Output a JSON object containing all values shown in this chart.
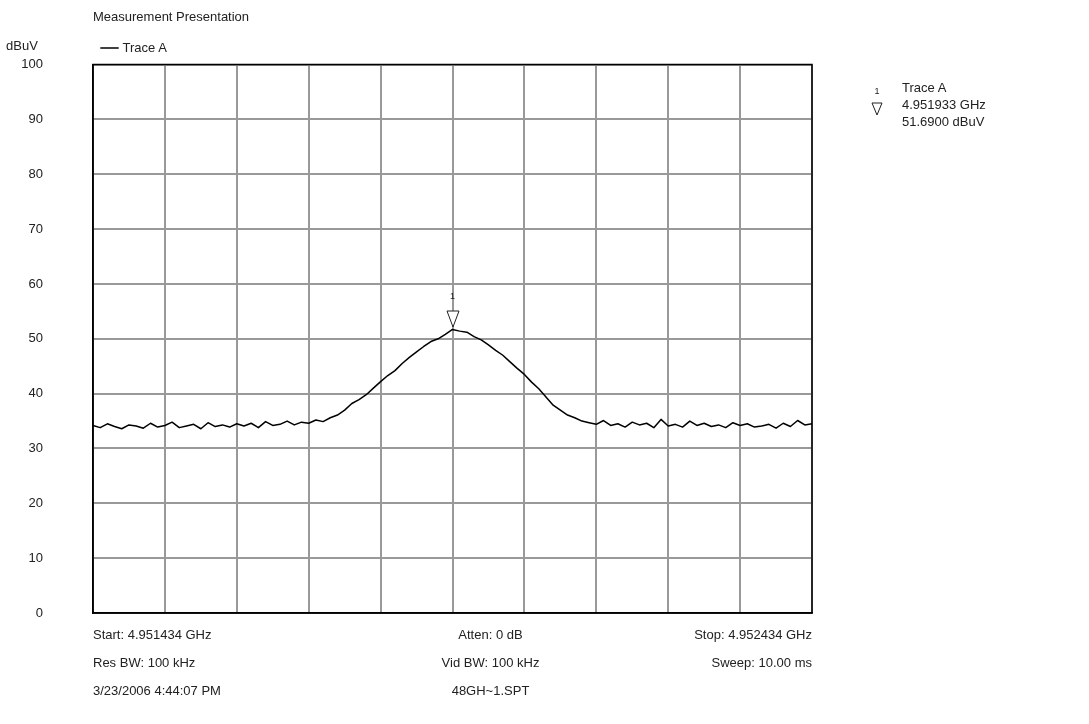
{
  "chart_data": {
    "type": "line",
    "title": "Measurement Presentation",
    "ylabel": "dBuV",
    "categories": [
      null,
      null,
      null,
      null,
      null,
      null,
      null,
      null,
      null,
      null,
      null,
      null,
      null,
      null,
      null,
      null,
      null,
      null,
      null,
      null,
      null,
      null,
      null,
      null,
      null,
      null,
      null,
      null,
      null,
      null,
      null,
      null,
      null,
      null,
      null,
      null,
      null,
      null,
      null,
      null,
      null,
      null,
      null,
      null,
      null,
      null,
      null,
      null,
      null,
      null,
      null,
      null,
      null,
      null,
      null,
      null,
      null,
      null,
      null,
      null,
      null,
      null,
      null,
      null,
      null,
      null,
      null,
      null,
      null,
      null,
      null,
      null,
      null,
      null,
      null,
      null,
      null,
      null,
      null,
      null,
      null,
      null,
      null,
      null,
      null,
      null,
      null,
      null,
      null,
      null,
      null,
      null,
      null,
      null,
      null,
      null,
      null,
      null,
      null,
      null,
      null
    ],
    "series": [
      {
        "name": "Trace A",
        "color": "#000000",
        "values": [
          34.2,
          33.8,
          34.5,
          34.0,
          33.6,
          34.3,
          34.1,
          33.7,
          34.6,
          33.9,
          34.2,
          34.8,
          33.8,
          34.1,
          34.4,
          33.6,
          34.7,
          34.0,
          34.3,
          33.9,
          34.5,
          34.1,
          34.6,
          33.8,
          34.9,
          34.2,
          34.4,
          35.0,
          34.3,
          34.8,
          34.6,
          35.2,
          34.9,
          35.6,
          36.1,
          37.0,
          38.2,
          38.9,
          39.8,
          41.0,
          42.2,
          43.3,
          44.2,
          45.5,
          46.6,
          47.6,
          48.6,
          49.5,
          50.0,
          50.8,
          51.7,
          51.4,
          51.2,
          50.4,
          49.8,
          48.9,
          47.9,
          47.0,
          45.8,
          44.6,
          43.5,
          42.1,
          40.9,
          39.4,
          37.9,
          37.0,
          36.1,
          35.6,
          35.0,
          34.7,
          34.4,
          35.1,
          34.2,
          34.5,
          33.9,
          34.8,
          34.3,
          34.6,
          33.8,
          35.3,
          34.1,
          34.4,
          33.9,
          35.0,
          34.2,
          34.6,
          34.0,
          34.3,
          33.8,
          34.7,
          34.2,
          34.5,
          33.9,
          34.1,
          34.4,
          33.7,
          34.6,
          34.0,
          35.1,
          34.3,
          34.5
        ]
      }
    ],
    "ylim": [
      0,
      100
    ],
    "yticks": [
      0,
      10,
      20,
      30,
      40,
      50,
      60,
      70,
      80,
      90,
      100
    ],
    "grid": true,
    "legend": "top left",
    "marker": "none",
    "line_style": "solid",
    "tick_labels": "y",
    "annotations": [
      "1",
      "1",
      "Trace A",
      "4.951933 GHz",
      "51.6900 dBuV",
      "Start: 4.951434 GHz",
      "Atten: 0 dB",
      "Stop: 4.952434 GHz",
      "Res BW: 100 kHz",
      "Vid BW: 100 kHz",
      "Sweep: 10.00 ms",
      "3/23/2006 4:44:07 PM",
      "48GH~1.SPT"
    ]
  }
}
